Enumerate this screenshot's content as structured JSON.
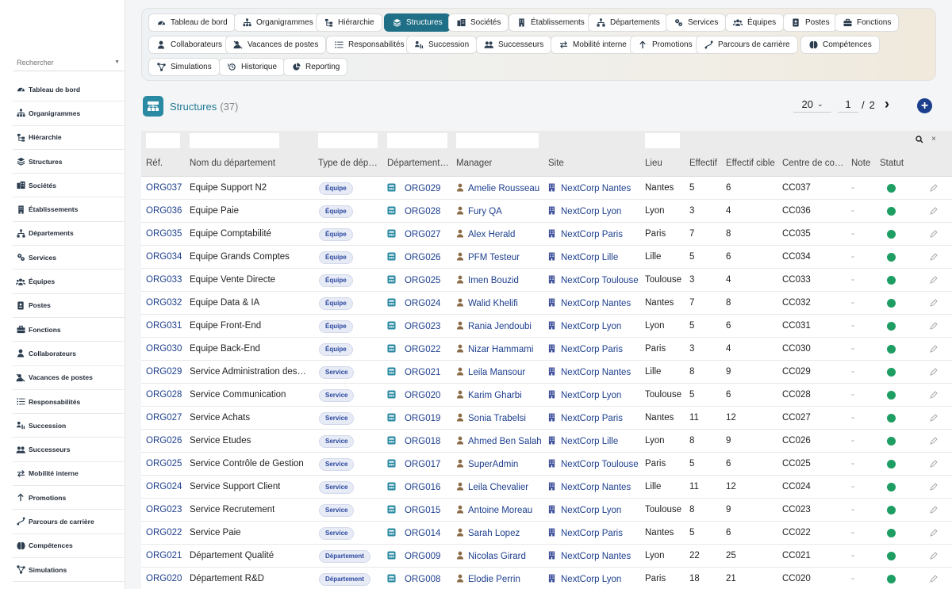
{
  "sidebar": {
    "search_placeholder": "Rechercher",
    "items": [
      {
        "label": "Tableau de bord",
        "icon": "dashboard-icon"
      },
      {
        "label": "Organigrammes",
        "icon": "org-chart-icon"
      },
      {
        "label": "Hiérarchie",
        "icon": "hierarchy-icon"
      },
      {
        "label": "Structures",
        "icon": "layers-icon"
      },
      {
        "label": "Sociétés",
        "icon": "companies-icon"
      },
      {
        "label": "Établissements",
        "icon": "building-icon"
      },
      {
        "label": "Départements",
        "icon": "departments-icon"
      },
      {
        "label": "Services",
        "icon": "services-icon"
      },
      {
        "label": "Équipes",
        "icon": "teams-icon"
      },
      {
        "label": "Postes",
        "icon": "badge-icon"
      },
      {
        "label": "Fonctions",
        "icon": "briefcase-icon"
      },
      {
        "label": "Collaborateurs",
        "icon": "user-icon"
      },
      {
        "label": "Vacances de postes",
        "icon": "vacancy-icon"
      },
      {
        "label": "Responsabilités",
        "icon": "list-icon"
      },
      {
        "label": "Succession",
        "icon": "succession-icon"
      },
      {
        "label": "Successeurs",
        "icon": "successors-icon"
      },
      {
        "label": "Mobilité interne",
        "icon": "swap-icon"
      },
      {
        "label": "Promotions",
        "icon": "arrow-up-icon"
      },
      {
        "label": "Parcours de carrière",
        "icon": "career-path-icon"
      },
      {
        "label": "Compétences",
        "icon": "brain-icon"
      },
      {
        "label": "Simulations",
        "icon": "simulation-icon"
      }
    ]
  },
  "topnav": {
    "items": [
      {
        "label": "Tableau de bord",
        "icon": "dashboard-icon"
      },
      {
        "label": "Organigrammes",
        "icon": "org-chart-icon"
      },
      {
        "label": "Hiérarchie",
        "icon": "hierarchy-icon"
      },
      {
        "label": "Structures",
        "icon": "layers-icon",
        "active": true
      },
      {
        "label": "Sociétés",
        "icon": "companies-icon"
      },
      {
        "label": "Établissements",
        "icon": "building-icon"
      },
      {
        "label": "Départements",
        "icon": "departments-icon"
      },
      {
        "label": "Services",
        "icon": "services-icon"
      },
      {
        "label": "Équipes",
        "icon": "teams-icon"
      },
      {
        "label": "Postes",
        "icon": "badge-icon"
      },
      {
        "label": "Fonctions",
        "icon": "briefcase-icon"
      },
      {
        "label": "Collaborateurs",
        "icon": "user-icon"
      },
      {
        "label": "Vacances de postes",
        "icon": "vacancy-icon"
      },
      {
        "label": "Responsabilités",
        "icon": "list-icon"
      },
      {
        "label": "Succession",
        "icon": "succession-icon"
      },
      {
        "label": "Successeurs",
        "icon": "successors-icon"
      },
      {
        "label": "Mobilité interne",
        "icon": "swap-icon"
      },
      {
        "label": "Promotions",
        "icon": "arrow-up-icon"
      },
      {
        "label": "Parcours de carrière",
        "icon": "career-path-icon"
      },
      {
        "label": "Compétences",
        "icon": "brain-icon"
      },
      {
        "label": "Simulations",
        "icon": "simulation-icon"
      },
      {
        "label": "Historique",
        "icon": "history-icon"
      },
      {
        "label": "Reporting",
        "icon": "chart-pie-icon"
      }
    ]
  },
  "page": {
    "title": "Structures",
    "count": "(37)",
    "page_size": "20",
    "current_page": "1",
    "page_separator": "/",
    "total_pages": "2"
  },
  "table": {
    "headers": [
      "Réf.",
      "Nom du département",
      "Type de départ…",
      "Département…",
      "Manager",
      "Site",
      "Lieu",
      "Effectif",
      "Effectif cible",
      "Centre de co…",
      "Note",
      "Statut"
    ],
    "rows": [
      {
        "ref": "ORG037",
        "name": "Équipe Support N2",
        "type": "Équipe",
        "parent": "ORG029",
        "manager": "Amelie Rousseau",
        "site": "NextCorp Nantes",
        "lieu": "Nantes",
        "effectif": "5",
        "cible": "6",
        "centre": "CC037",
        "note": "-"
      },
      {
        "ref": "ORG036",
        "name": "Équipe Paie",
        "type": "Équipe",
        "parent": "ORG028",
        "manager": "Fury QA",
        "site": "NextCorp Lyon",
        "lieu": "Lyon",
        "effectif": "3",
        "cible": "4",
        "centre": "CC036",
        "note": "-"
      },
      {
        "ref": "ORG035",
        "name": "Équipe Comptabilité",
        "type": "Équipe",
        "parent": "ORG027",
        "manager": "Alex Herald",
        "site": "NextCorp Paris",
        "lieu": "Paris",
        "effectif": "7",
        "cible": "8",
        "centre": "CC035",
        "note": "-"
      },
      {
        "ref": "ORG034",
        "name": "Équipe Grands Comptes",
        "type": "Équipe",
        "parent": "ORG026",
        "manager": "PFM Testeur",
        "site": "NextCorp Lille",
        "lieu": "Lille",
        "effectif": "5",
        "cible": "6",
        "centre": "CC034",
        "note": "-"
      },
      {
        "ref": "ORG033",
        "name": "Équipe Vente Directe",
        "type": "Équipe",
        "parent": "ORG025",
        "manager": "Imen Bouzid",
        "site": "NextCorp Toulouse",
        "lieu": "Toulouse",
        "effectif": "3",
        "cible": "4",
        "centre": "CC033",
        "note": "-"
      },
      {
        "ref": "ORG032",
        "name": "Équipe Data & IA",
        "type": "Équipe",
        "parent": "ORG024",
        "manager": "Walid Khelifi",
        "site": "NextCorp Nantes",
        "lieu": "Nantes",
        "effectif": "7",
        "cible": "8",
        "centre": "CC032",
        "note": "-"
      },
      {
        "ref": "ORG031",
        "name": "Équipe Front-End",
        "type": "Équipe",
        "parent": "ORG023",
        "manager": "Rania Jendoubi",
        "site": "NextCorp Lyon",
        "lieu": "Lyon",
        "effectif": "5",
        "cible": "6",
        "centre": "CC031",
        "note": "-"
      },
      {
        "ref": "ORG030",
        "name": "Équipe Back-End",
        "type": "Équipe",
        "parent": "ORG022",
        "manager": "Nizar Hammami",
        "site": "NextCorp Paris",
        "lieu": "Paris",
        "effectif": "3",
        "cible": "4",
        "centre": "CC030",
        "note": "-"
      },
      {
        "ref": "ORG029",
        "name": "Service Administration des …",
        "type": "Service",
        "parent": "ORG021",
        "manager": "Leila Mansour",
        "site": "NextCorp Nantes",
        "lieu": "Lille",
        "effectif": "8",
        "cible": "9",
        "centre": "CC029",
        "note": "-"
      },
      {
        "ref": "ORG028",
        "name": "Service Communication",
        "type": "Service",
        "parent": "ORG020",
        "manager": "Karim Gharbi",
        "site": "NextCorp Lyon",
        "lieu": "Toulouse",
        "effectif": "5",
        "cible": "6",
        "centre": "CC028",
        "note": "-"
      },
      {
        "ref": "ORG027",
        "name": "Service Achats",
        "type": "Service",
        "parent": "ORG019",
        "manager": "Sonia Trabelsi",
        "site": "NextCorp Paris",
        "lieu": "Nantes",
        "effectif": "11",
        "cible": "12",
        "centre": "CC027",
        "note": "-"
      },
      {
        "ref": "ORG026",
        "name": "Service Études",
        "type": "Service",
        "parent": "ORG018",
        "manager": "Ahmed Ben Salah",
        "site": "NextCorp Lille",
        "lieu": "Lyon",
        "effectif": "8",
        "cible": "9",
        "centre": "CC026",
        "note": "-"
      },
      {
        "ref": "ORG025",
        "name": "Service Contrôle de Gestion",
        "type": "Service",
        "parent": "ORG017",
        "manager": "SuperAdmin",
        "site": "NextCorp Toulouse",
        "lieu": "Paris",
        "effectif": "5",
        "cible": "6",
        "centre": "CC025",
        "note": "-"
      },
      {
        "ref": "ORG024",
        "name": "Service Support Client",
        "type": "Service",
        "parent": "ORG016",
        "manager": "Leila Chevalier",
        "site": "NextCorp Nantes",
        "lieu": "Lille",
        "effectif": "11",
        "cible": "12",
        "centre": "CC024",
        "note": "-"
      },
      {
        "ref": "ORG023",
        "name": "Service Recrutement",
        "type": "Service",
        "parent": "ORG015",
        "manager": "Antoine Moreau",
        "site": "NextCorp Lyon",
        "lieu": "Toulouse",
        "effectif": "8",
        "cible": "9",
        "centre": "CC023",
        "note": "-"
      },
      {
        "ref": "ORG022",
        "name": "Service Paie",
        "type": "Service",
        "parent": "ORG014",
        "manager": "Sarah Lopez",
        "site": "NextCorp Paris",
        "lieu": "Nantes",
        "effectif": "5",
        "cible": "6",
        "centre": "CC022",
        "note": "-"
      },
      {
        "ref": "ORG021",
        "name": "Département Qualité",
        "type": "Département",
        "parent": "ORG009",
        "manager": "Nicolas Girard",
        "site": "NextCorp Nantes",
        "lieu": "Lyon",
        "effectif": "22",
        "cible": "25",
        "centre": "CC021",
        "note": "-"
      },
      {
        "ref": "ORG020",
        "name": "Département R&D",
        "type": "Département",
        "parent": "ORG008",
        "manager": "Elodie Perrin",
        "site": "NextCorp Lyon",
        "lieu": "Paris",
        "effectif": "18",
        "cible": "21",
        "centre": "CC020",
        "note": "-"
      }
    ]
  },
  "colors": {
    "accent": "#1f6f86",
    "link": "#1d3f8e",
    "status_active": "#1e9e62",
    "add_button": "#1b3f8c"
  }
}
